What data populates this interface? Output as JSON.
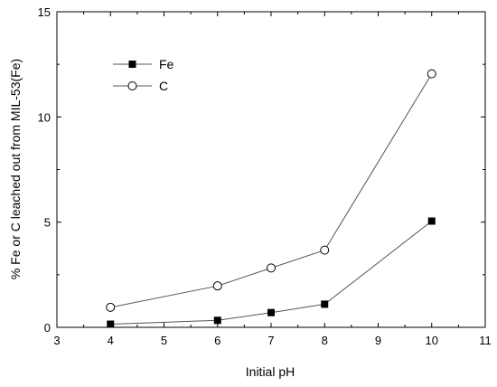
{
  "chart_data": {
    "type": "line",
    "title": "",
    "xlabel": "Initial pH",
    "ylabel": "% Fe or C leached out from MIL-53(Fe)",
    "xlim": [
      3,
      11
    ],
    "ylim": [
      0,
      15
    ],
    "xticks": [
      3,
      4,
      5,
      6,
      7,
      8,
      9,
      10,
      11
    ],
    "yticks": [
      0,
      5,
      10,
      15
    ],
    "grid": false,
    "legend_position": "top-left",
    "x": [
      4,
      6,
      7,
      8,
      10
    ],
    "series": [
      {
        "name": "Fe",
        "marker": "filled-square",
        "values": [
          0.15,
          0.33,
          0.7,
          1.1,
          5.05
        ]
      },
      {
        "name": "C",
        "marker": "open-circle",
        "values": [
          0.95,
          1.97,
          2.82,
          3.67,
          12.05
        ]
      }
    ]
  }
}
